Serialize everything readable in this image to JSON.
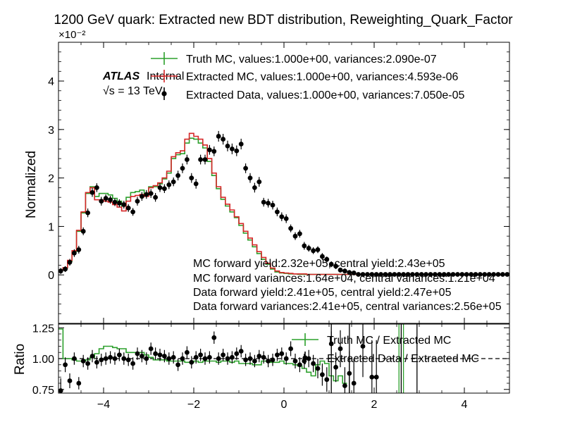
{
  "title": "1200 GeV quark: Extracted new BDT distribution, Reweighting_Quark_Factor",
  "atlas_label": "ATLAS",
  "atlas_sublabel": "Internal",
  "energy_label": "√s = 13 TeV",
  "annotations": [
    "MC forward yield:2.32e+05, central yield:2.43e+05",
    "MC forward variances:1.64e+04, central variances:1.21e+04",
    "Data forward yield:2.41e+05, central yield:2.47e+05",
    "Data forward variances:2.41e+05, central variances:2.56e+05"
  ],
  "colors": {
    "truth": "#2ca02c",
    "extracted_mc": "#d62728",
    "data": "#000000"
  },
  "chart_data": [
    {
      "type": "line",
      "ylabel": "Normalized",
      "y_multiplier": "×10⁻²",
      "xlim": [
        -5,
        5
      ],
      "ylim": [
        -1,
        4.8
      ],
      "yticks": [
        0,
        1,
        2,
        3,
        4
      ],
      "ytick_labels": [
        "0",
        "1",
        "2",
        "3",
        "4"
      ],
      "legend": [
        "Truth MC, values:1.000e+00, variances:2.090e-07",
        "Extracted MC, values:1.000e+00, variances:4.593e-06",
        "Extracted Data, values:1.000e+00, variances:7.050e-05"
      ],
      "bin_edges": [
        -5,
        4.95
      ],
      "bin_width": 0.1,
      "series": [
        {
          "name": "Truth MC",
          "style": "step",
          "values": [
            0.1,
            0.14,
            0.28,
            0.48,
            0.9,
            1.28,
            1.68,
            1.82,
            1.62,
            1.68,
            1.68,
            1.65,
            1.58,
            1.52,
            1.42,
            1.6,
            1.7,
            1.72,
            1.75,
            1.66,
            1.82,
            1.82,
            1.88,
            1.98,
            2.1,
            2.4,
            2.48,
            2.5,
            2.72,
            2.82,
            2.8,
            2.72,
            2.62,
            2.34,
            2.05,
            1.78,
            1.56,
            1.42,
            1.3,
            1.18,
            1.02,
            0.86,
            0.72,
            0.58,
            0.44,
            0.32,
            0.22,
            0.12,
            0.06,
            0.04,
            0.03,
            0.02,
            0.02,
            0.01,
            0.01,
            0.01,
            0.01,
            0.01,
            0.01,
            0.01,
            0.01,
            0.01,
            0.01,
            0.01,
            0.01,
            0.01,
            0.01,
            0.01,
            0.01,
            0.01,
            0.01,
            0.01,
            0.01,
            0.01,
            0.01,
            0.01,
            0.01,
            0.01,
            0.01,
            0.01,
            0.01,
            0.01,
            0.01,
            0.01,
            0.01,
            0.01,
            0.01,
            0.01,
            0.01,
            0.01,
            0.01,
            0.01,
            0.01,
            0.01,
            0.01,
            0.01,
            0.01,
            0.01,
            0.01,
            0.01
          ]
        },
        {
          "name": "Extracted MC",
          "style": "step",
          "values": [
            0.1,
            0.15,
            0.3,
            0.5,
            0.92,
            1.3,
            1.7,
            1.8,
            1.55,
            1.55,
            1.52,
            1.5,
            1.45,
            1.4,
            1.32,
            1.52,
            1.62,
            1.64,
            1.66,
            1.62,
            1.8,
            1.84,
            1.9,
            2.0,
            2.14,
            2.44,
            2.52,
            2.56,
            2.8,
            2.92,
            2.86,
            2.8,
            2.68,
            2.4,
            2.1,
            1.82,
            1.6,
            1.46,
            1.34,
            1.2,
            1.06,
            0.9,
            0.76,
            0.62,
            0.48,
            0.36,
            0.24,
            0.14,
            0.08,
            0.05,
            0.04,
            0.03,
            0.02,
            0.02,
            0.02,
            0.01,
            0.01,
            0.01,
            0.01,
            0.01,
            0.01,
            0.01,
            0.01,
            0.01,
            0.01,
            0.01,
            0.01,
            0.01,
            0.01,
            0.01,
            0.01,
            0.01,
            0.01,
            0.01,
            0.01,
            0.01,
            0.01,
            0.01,
            0.01,
            0.01,
            0.01,
            0.01,
            0.01,
            0.01,
            0.01,
            0.01,
            0.01,
            0.01,
            0.01,
            0.01,
            0.01,
            0.01,
            0.01,
            0.01,
            0.01,
            0.01,
            0.01,
            0.01,
            0.01,
            0.01
          ]
        },
        {
          "name": "Extracted Data",
          "style": "points",
          "x": [
            -4.95,
            -4.85,
            -4.75,
            -4.65,
            -4.55,
            -4.45,
            -4.35,
            -4.25,
            -4.15,
            -4.05,
            -3.95,
            -3.85,
            -3.75,
            -3.65,
            -3.55,
            -3.45,
            -3.35,
            -3.25,
            -3.15,
            -3.05,
            -2.95,
            -2.85,
            -2.75,
            -2.65,
            -2.55,
            -2.45,
            -2.35,
            -2.25,
            -2.15,
            -2.05,
            -1.95,
            -1.85,
            -1.75,
            -1.65,
            -1.55,
            -1.45,
            -1.35,
            -1.25,
            -1.15,
            -1.05,
            -0.95,
            -0.85,
            -0.75,
            -0.65,
            -0.55,
            -0.45,
            -0.35,
            -0.25,
            -0.15,
            -0.05,
            0.05,
            0.15,
            0.25,
            0.35,
            0.45,
            0.55,
            0.65,
            0.75,
            0.85,
            0.95,
            1.05,
            1.15,
            1.25,
            1.35,
            1.45,
            1.55,
            1.65,
            1.75,
            1.85,
            1.95,
            2.05,
            2.15,
            2.25,
            2.35,
            2.45,
            2.55,
            2.65,
            2.75,
            2.85,
            2.95,
            3.05,
            3.15,
            3.25,
            3.35,
            3.45,
            3.55,
            3.65,
            3.75,
            3.85,
            3.95,
            4.05,
            4.15,
            4.25,
            4.35,
            4.45,
            4.55,
            4.65,
            4.75,
            4.85,
            4.95
          ],
          "y": [
            0.08,
            0.12,
            0.26,
            0.45,
            0.52,
            0.9,
            1.28,
            1.7,
            1.8,
            1.52,
            1.58,
            1.55,
            1.5,
            1.48,
            1.45,
            1.38,
            1.3,
            1.52,
            1.62,
            1.66,
            1.68,
            1.6,
            1.8,
            1.78,
            1.86,
            1.92,
            2.05,
            2.2,
            2.38,
            2.0,
            1.88,
            2.38,
            2.38,
            2.58,
            2.55,
            2.86,
            2.8,
            2.66,
            2.6,
            2.56,
            2.7,
            2.2,
            2.0,
            1.8,
            1.92,
            1.5,
            1.48,
            1.44,
            1.3,
            1.2,
            1.16,
            0.96,
            0.8,
            0.85,
            0.6,
            0.55,
            0.5,
            0.52,
            0.38,
            0.32,
            0.22,
            0.18,
            0.1,
            0.08,
            0.05,
            0.04,
            0.01,
            0.01,
            0.01,
            0.01,
            0.01,
            0.01,
            0.01,
            0.01,
            0.01,
            0.01,
            0.01,
            0.01,
            0.01,
            0.01,
            0.01,
            0.01,
            0.01,
            0.01,
            0.01,
            0.01,
            0.01,
            0.01,
            0.01,
            0.01,
            0.01,
            0.01,
            0.01,
            0.01,
            0.01,
            0.01,
            0.01,
            0.01,
            0.01,
            0.01
          ],
          "yerr": [
            0.06,
            0.06,
            0.07,
            0.08,
            0.08,
            0.08,
            0.09,
            0.09,
            0.09,
            0.09,
            0.08,
            0.08,
            0.08,
            0.08,
            0.08,
            0.08,
            0.08,
            0.09,
            0.09,
            0.09,
            0.09,
            0.09,
            0.09,
            0.09,
            0.09,
            0.09,
            0.1,
            0.1,
            0.1,
            0.1,
            0.1,
            0.1,
            0.1,
            0.1,
            0.1,
            0.11,
            0.11,
            0.11,
            0.11,
            0.11,
            0.11,
            0.1,
            0.1,
            0.1,
            0.1,
            0.09,
            0.09,
            0.09,
            0.09,
            0.09,
            0.09,
            0.08,
            0.08,
            0.08,
            0.08,
            0.07,
            0.07,
            0.07,
            0.07,
            0.06,
            0.06,
            0.06,
            0.05,
            0.05,
            0.05,
            0.04,
            0.02,
            0.02,
            0.02,
            0.02,
            0.02,
            0.02,
            0.02,
            0.02,
            0.02,
            0.02,
            0.02,
            0.02,
            0.02,
            0.02,
            0.02,
            0.02,
            0.02,
            0.02,
            0.02,
            0.02,
            0.02,
            0.02,
            0.02,
            0.02,
            0.02,
            0.02,
            0.02,
            0.02,
            0.02,
            0.02,
            0.02,
            0.02,
            0.02,
            0.02
          ]
        }
      ]
    },
    {
      "type": "line",
      "ylabel": "Ratio",
      "xlim": [
        -5,
        5
      ],
      "ylim": [
        0.72,
        1.28
      ],
      "yticks": [
        0.75,
        1.0,
        1.25
      ],
      "ytick_labels": [
        "0.75",
        "1.00",
        "1.25"
      ],
      "xticks": [
        -4,
        -2,
        0,
        2,
        4
      ],
      "xtick_labels": [
        "−4",
        "−2",
        "0",
        "2",
        "4"
      ],
      "reference_line": 1.0,
      "legend": [
        "Truth MC / Extracted MC",
        "Extracted Data / Extracted MC"
      ],
      "series": [
        {
          "name": "Truth MC / Extracted MC",
          "style": "step",
          "values": [
            1.24,
            1.0,
            1.0,
            0.99,
            0.98,
            0.98,
            0.99,
            1.01,
            1.04,
            1.08,
            1.1,
            1.1,
            1.09,
            1.08,
            1.08,
            1.05,
            1.05,
            1.05,
            1.05,
            1.03,
            1.01,
            0.99,
            0.99,
            0.99,
            0.98,
            0.98,
            0.98,
            0.98,
            0.97,
            0.97,
            0.98,
            0.97,
            0.98,
            0.98,
            0.98,
            0.97,
            0.98,
            0.98,
            0.97,
            0.98,
            0.96,
            0.96,
            0.96,
            0.95,
            0.95,
            0.98,
            0.98,
            0.97,
            0.97,
            0.98,
            0.96,
            0.96,
            0.95,
            0.94,
            0.92,
            0.89,
            0.86,
            0.95,
            0.98,
            0.96,
            0.86,
            0.82,
            0.86,
            0.8
          ]
        },
        {
          "name": "Extracted Data / Extracted MC",
          "style": "points",
          "x": [
            -4.95,
            -4.85,
            -4.75,
            -4.65,
            -4.55,
            -4.45,
            -4.35,
            -4.25,
            -4.15,
            -4.05,
            -3.95,
            -3.85,
            -3.75,
            -3.65,
            -3.55,
            -3.45,
            -3.35,
            -3.25,
            -3.15,
            -3.05,
            -2.95,
            -2.85,
            -2.75,
            -2.65,
            -2.55,
            -2.45,
            -2.35,
            -2.25,
            -2.15,
            -2.05,
            -1.95,
            -1.85,
            -1.75,
            -1.65,
            -1.55,
            -1.45,
            -1.35,
            -1.25,
            -1.15,
            -1.05,
            -0.95,
            -0.85,
            -0.75,
            -0.65,
            -0.55,
            -0.45,
            -0.35,
            -0.25,
            -0.15,
            -0.05,
            0.05,
            0.15,
            0.25,
            0.35,
            0.45,
            0.55,
            0.65,
            0.75,
            0.85,
            0.95,
            1.05,
            1.15,
            1.25,
            1.35,
            1.45,
            1.55,
            1.75,
            1.95,
            2.05
          ],
          "y": [
            0.74,
            0.95,
            0.82,
            1.0,
            0.8,
            0.98,
            0.96,
            1.02,
            0.97,
            0.99,
            1.0,
            1.01,
            1.0,
            1.03,
            1.0,
            0.99,
            0.96,
            1.04,
            1.02,
            1.0,
            1.08,
            1.04,
            1.03,
            1.02,
            1.0,
            1.01,
            0.95,
            1.0,
            1.05,
            0.97,
            1.01,
            1.03,
            1.0,
            1.01,
            1.17,
            1.0,
            1.03,
            1.0,
            1.01,
            1.04,
            1.06,
            0.99,
            1.0,
            0.98,
            1.02,
            1.01,
            0.98,
            0.99,
            1.03,
            1.04,
            1.0,
            1.08,
            0.98,
            0.95,
            0.98,
            1.0,
            0.96,
            0.92,
            0.87,
            0.83,
            1.12,
            0.93,
            1.08,
            0.78,
            0.88,
            0.8,
            1.1,
            0.85,
            0.85
          ],
          "yerr": [
            0.1,
            0.06,
            0.06,
            0.05,
            0.05,
            0.05,
            0.05,
            0.05,
            0.05,
            0.05,
            0.05,
            0.05,
            0.05,
            0.05,
            0.05,
            0.05,
            0.05,
            0.05,
            0.05,
            0.05,
            0.05,
            0.05,
            0.05,
            0.05,
            0.05,
            0.05,
            0.05,
            0.05,
            0.05,
            0.05,
            0.05,
            0.05,
            0.05,
            0.05,
            0.05,
            0.05,
            0.05,
            0.05,
            0.05,
            0.05,
            0.05,
            0.05,
            0.05,
            0.05,
            0.05,
            0.05,
            0.05,
            0.05,
            0.05,
            0.05,
            0.05,
            0.06,
            0.06,
            0.06,
            0.06,
            0.07,
            0.07,
            0.08,
            0.09,
            0.1,
            0.1,
            0.12,
            0.15,
            0.15,
            0.18,
            0.2,
            0.25,
            0.3,
            0.3
          ]
        }
      ]
    }
  ]
}
